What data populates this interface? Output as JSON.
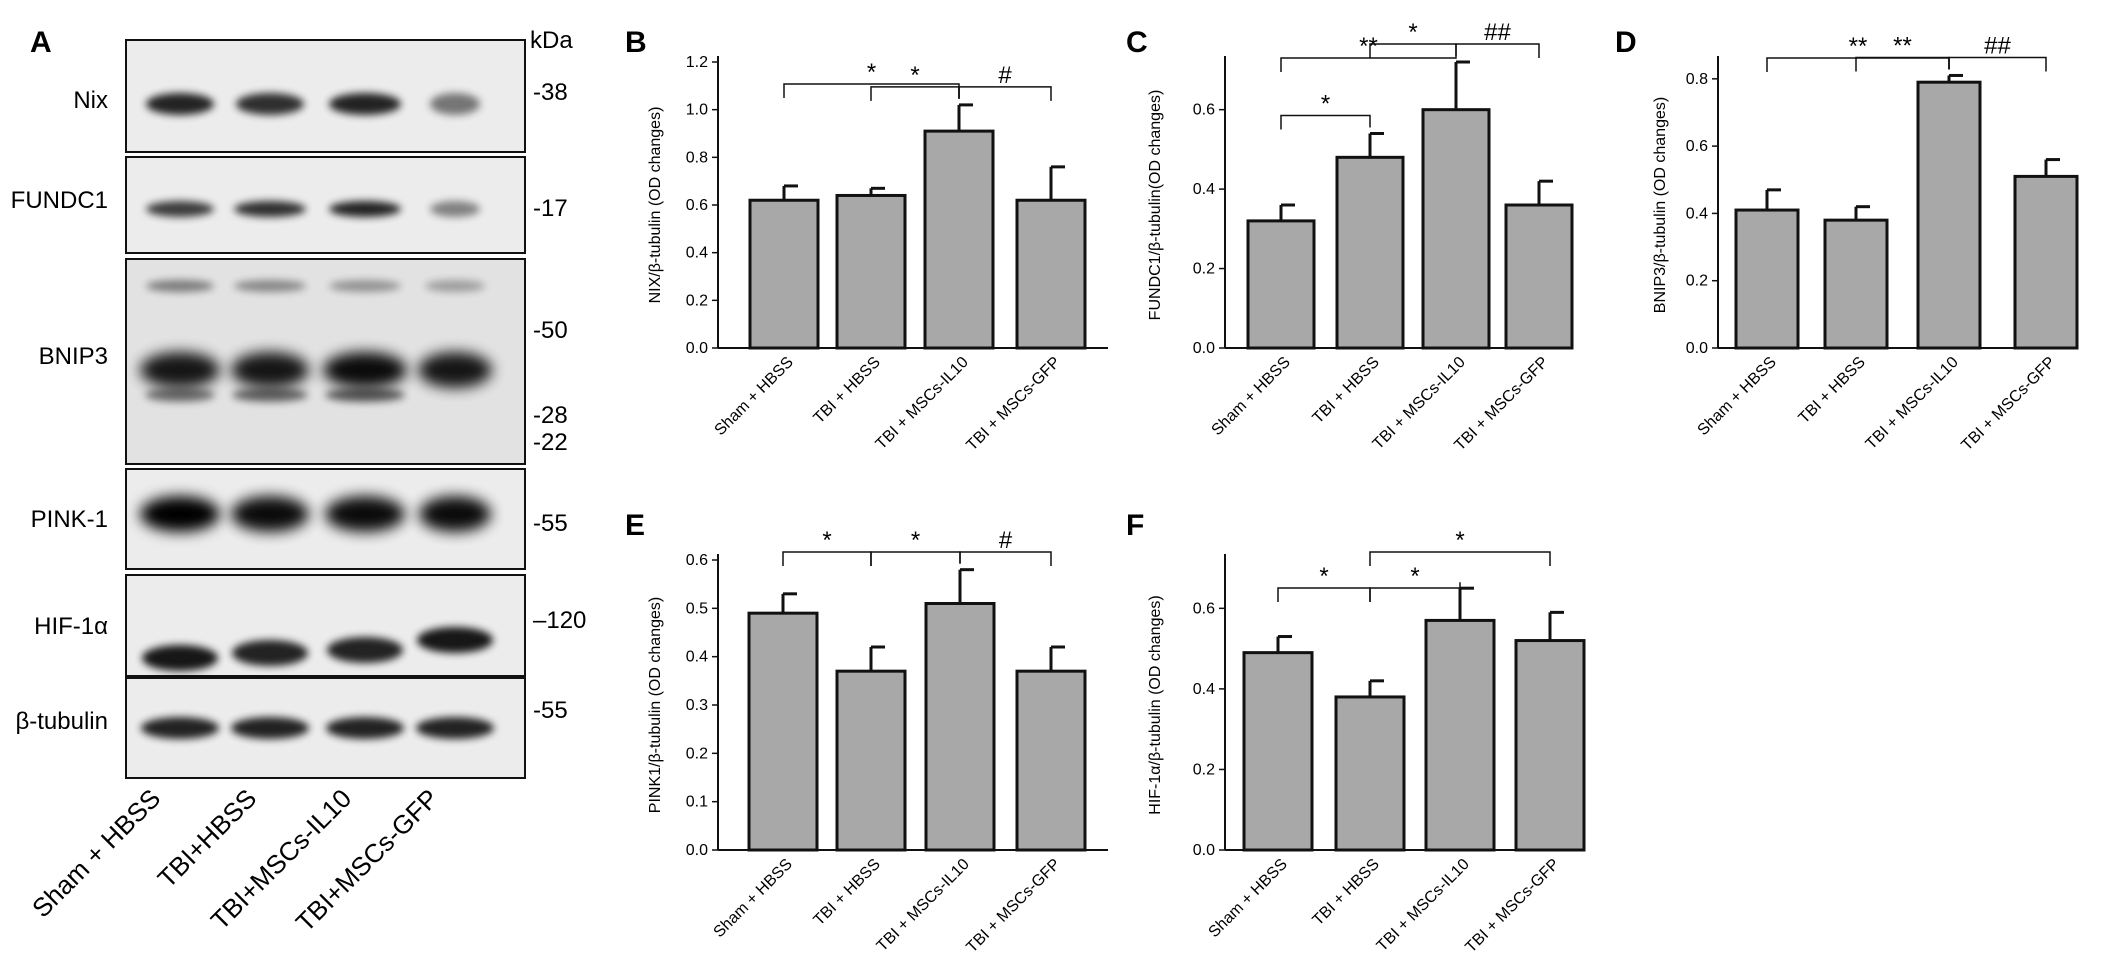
{
  "blot": {
    "letter": "A",
    "kda_header": "kDa",
    "lanes": [
      "Sham + HBSS",
      "TBI+HBSS",
      "TBI+MSCs-IL10",
      "TBI+MSCs-GFP"
    ],
    "rows": [
      {
        "label": "Nix",
        "markers": [
          "38"
        ]
      },
      {
        "label": "FUNDC1",
        "markers": [
          "17"
        ]
      },
      {
        "label": "BNIP3",
        "markers": [
          "50",
          "28",
          "22"
        ]
      },
      {
        "label": "PINK-1",
        "markers": [
          "55"
        ]
      },
      {
        "label": "HIF-1α",
        "markers": [
          "120"
        ]
      },
      {
        "label": "β-tubulin",
        "markers": [
          "55"
        ]
      }
    ]
  },
  "chart_data": [
    {
      "letter": "B",
      "type": "bar",
      "categories": [
        "Sham + HBSS",
        "TBI + HBSS",
        "TBI + MSCs-IL10",
        "TBI + MSCs-GFP"
      ],
      "values": [
        0.62,
        0.64,
        0.91,
        0.62
      ],
      "errors": [
        0.06,
        0.03,
        0.11,
        0.14
      ],
      "ylabel": "NIX/β-tubulin (OD changes)",
      "ylim": [
        0,
        1.2
      ],
      "ticks": [
        "0.0",
        "0.2",
        "0.4",
        "0.6",
        "0.8",
        "1.0",
        "1.2"
      ],
      "significance": [
        {
          "from": 0,
          "to": 2,
          "label": "*"
        },
        {
          "from": 1,
          "to": 2,
          "label": "*"
        },
        {
          "from": 2,
          "to": 3,
          "label": "#"
        }
      ]
    },
    {
      "letter": "C",
      "type": "bar",
      "categories": [
        "Sham + HBSS",
        "TBI + HBSS",
        "TBI + MSCs-IL10",
        "TBI + MSCs-GFP"
      ],
      "values": [
        0.32,
        0.48,
        0.6,
        0.36
      ],
      "errors": [
        0.04,
        0.06,
        0.12,
        0.06
      ],
      "ylabel": "FUNDC1/β-tubulin(OD changes)",
      "ylim": [
        0,
        0.72
      ],
      "ticks": [
        "0.0",
        "0.2",
        "0.4",
        "0.6"
      ],
      "significance": [
        {
          "from": 0,
          "to": 2,
          "label": "**"
        },
        {
          "from": 0,
          "to": 1,
          "label": "*"
        },
        {
          "from": 1,
          "to": 2,
          "label": "*"
        },
        {
          "from": 2,
          "to": 3,
          "label": "##"
        }
      ]
    },
    {
      "letter": "D",
      "type": "bar",
      "categories": [
        "Sham + HBSS",
        "TBI + HBSS",
        "TBI + MSCs-IL10",
        "TBI + MSCs-GFP"
      ],
      "values": [
        0.41,
        0.38,
        0.79,
        0.51
      ],
      "errors": [
        0.06,
        0.04,
        0.02,
        0.05
      ],
      "ylabel": "BNIP3/β-tubulin (OD changes)",
      "ylim": [
        0,
        0.85
      ],
      "ticks": [
        "0.0",
        "0.2",
        "0.4",
        "0.6",
        "0.8"
      ],
      "significance": [
        {
          "from": 0,
          "to": 2,
          "label": "**"
        },
        {
          "from": 1,
          "to": 2,
          "label": "**"
        },
        {
          "from": 2,
          "to": 3,
          "label": "##"
        }
      ]
    },
    {
      "letter": "E",
      "type": "bar",
      "categories": [
        "Sham + HBSS",
        "TBI + HBSS",
        "TBI + MSCs-IL10",
        "TBI + MSCs-GFP"
      ],
      "values": [
        0.49,
        0.37,
        0.51,
        0.37
      ],
      "errors": [
        0.04,
        0.05,
        0.07,
        0.05
      ],
      "ylabel": "PINK1/β-tubulin (OD changes)",
      "ylim": [
        0,
        0.6
      ],
      "ticks": [
        "0.0",
        "0.1",
        "0.2",
        "0.3",
        "0.4",
        "0.5",
        "0.6"
      ],
      "significance": [
        {
          "from": 0,
          "to": 1,
          "label": "*"
        },
        {
          "from": 1,
          "to": 2,
          "label": "*"
        },
        {
          "from": 2,
          "to": 3,
          "label": "#"
        }
      ]
    },
    {
      "letter": "F",
      "type": "bar",
      "categories": [
        "Sham + HBSS",
        "TBI + HBSS",
        "TBI + MSCs-IL10",
        "TBI + MSCs-GFP"
      ],
      "values": [
        0.49,
        0.38,
        0.57,
        0.52
      ],
      "errors": [
        0.04,
        0.04,
        0.08,
        0.07
      ],
      "ylabel": "HIF-1α/β-tubulin (OD changes)",
      "ylim": [
        0,
        0.72
      ],
      "ticks": [
        "0.0",
        "0.2",
        "0.4",
        "0.6"
      ],
      "significance": [
        {
          "from": 0,
          "to": 1,
          "label": "*"
        },
        {
          "from": 1,
          "to": 2,
          "label": "*"
        },
        {
          "from": 1,
          "to": 3,
          "label": "*"
        }
      ]
    }
  ]
}
